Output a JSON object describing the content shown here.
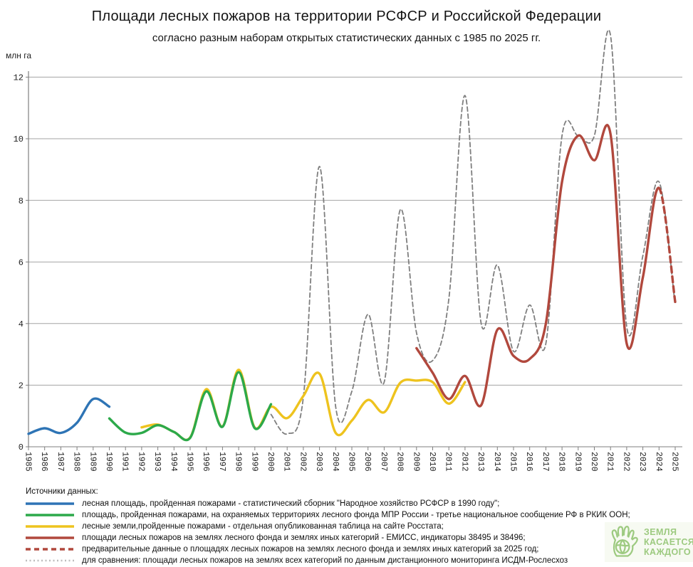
{
  "title": "Площади лесных пожаров на территории РСФСР и Российской Федерации",
  "subtitle": "согласно разным наборам открытых статистических данных с 1985 по 2025 гг.",
  "y_axis_unit": "млн га",
  "chart_data": {
    "type": "line",
    "title": "Площади лесных пожаров на территории РСФСР и Российской Федерации",
    "xlabel": "",
    "ylabel": "млн га",
    "ylim": [
      0,
      12
    ],
    "yticks": [
      0,
      2,
      4,
      6,
      8,
      10,
      12
    ],
    "x_range": [
      1985,
      2025
    ],
    "grid": true,
    "legend_position": "bottom",
    "series": [
      {
        "id": "rsfsr",
        "name": "лесная площадь, пройденная пожарами (РСФСР)",
        "color": "#2e74b5",
        "style": "solid",
        "width": 3.4,
        "z": 3,
        "start_year": 1985,
        "values": [
          0.42,
          0.6,
          0.45,
          0.78,
          1.55,
          1.3
        ]
      },
      {
        "id": "mpr",
        "name": "площадь, пройденная пожарами, на охраняемых территориях лесного фонда МПР России",
        "color": "#2ca94a",
        "style": "solid",
        "width": 3.4,
        "z": 2,
        "start_year": 1990,
        "values": [
          0.92,
          0.46,
          0.45,
          0.7,
          0.48,
          0.29,
          1.8,
          0.65,
          2.42,
          0.6,
          1.38
        ]
      },
      {
        "id": "rosstat",
        "name": "лесные земли, пройденные пожарами (Росстат)",
        "color": "#eec31e",
        "style": "solid",
        "width": 3.4,
        "z": 1,
        "start_year": 1992,
        "values": [
          0.63,
          0.72,
          0.48,
          0.3,
          1.87,
          0.66,
          2.5,
          0.62,
          1.3,
          0.93,
          1.65,
          2.37,
          0.45,
          0.85,
          1.52,
          1.12,
          2.08,
          2.15,
          2.1,
          1.4,
          2.1
        ]
      },
      {
        "id": "emiss",
        "name": "площади лесных пожаров на землях лесного фонда и землях иных категорий (ЕМИСС)",
        "color": "#b1483d",
        "style": "solid",
        "width": 3.4,
        "z": 4,
        "start_year": 2009,
        "dashed_from_year": 2024,
        "dash": "8,6",
        "values": [
          3.2,
          2.4,
          1.55,
          2.3,
          1.35,
          3.8,
          2.95,
          2.85,
          4.0,
          8.6,
          10.1,
          9.3,
          10.15,
          3.35,
          5.5,
          8.4,
          4.7
        ]
      },
      {
        "id": "isdm",
        "name": "площади лесных пожаров по данным дистанционного мониторинга ИСДМ-Рослесхоз",
        "color": "#7f7f7f",
        "style": "dashed",
        "width": 1.8,
        "z": 0,
        "dash": "6,4",
        "start_year": 2000,
        "values": [
          1.05,
          0.42,
          1.6,
          9.1,
          1.3,
          1.8,
          4.3,
          2.1,
          7.7,
          3.7,
          2.8,
          4.8,
          11.4,
          4.0,
          5.9,
          3.1,
          4.6,
          3.35,
          10.1,
          10.1,
          10.1,
          13.35,
          3.9,
          6.2,
          8.6,
          4.6
        ]
      }
    ]
  },
  "legend": {
    "header": "Источники данных:",
    "items": [
      {
        "label": "лесная площадь, пройденная пожарами - статистический сборник \"Народное хозяйство РСФСР в 1990 году\";",
        "color": "#2e74b5",
        "style": "solid"
      },
      {
        "label": "площадь, пройденная пожарами, на охраняемых территориях лесного фонда МПР России - третье национальное сообщение РФ в РКИК ООН;",
        "color": "#2ca94a",
        "style": "solid"
      },
      {
        "label": "лесные земли,пройденные пожарами - отдельная опубликованная таблица на сайте Росстата;",
        "color": "#eec31e",
        "style": "solid"
      },
      {
        "label": "площади лесных пожаров на землях лесного фонда и землях иных категорий - ЕМИСС, индикаторы 38495 и 38496;",
        "color": "#b1483d",
        "style": "solid"
      },
      {
        "label": "предварительные данные о площадях лесных пожаров на землях лесного фонда и землях иных категорий за 2025 год;",
        "color": "#b1483d",
        "style": "dashed"
      },
      {
        "label": "для сравнения: площади лесных пожаров на землях всех категорий по данным дистанционного мониторинга ИСДМ-Рослесхоз",
        "color": "#bdbdbd",
        "style": "dotted"
      }
    ]
  },
  "logo": {
    "lines": [
      "ЗЕМЛЯ",
      "КАСАЕТСЯ",
      "КАЖДОГО"
    ],
    "color": "#9dca80"
  }
}
